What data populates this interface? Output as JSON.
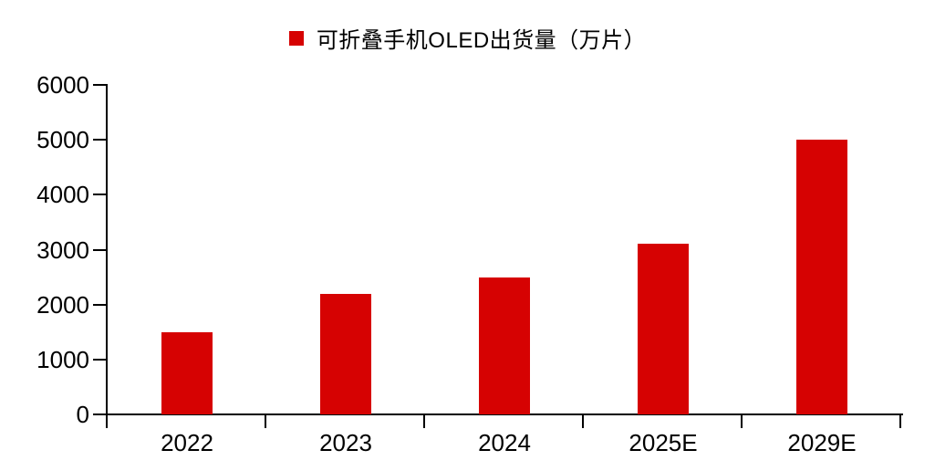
{
  "legend": {
    "label": "可折叠手机OLED出货量（万片）"
  },
  "chart_data": {
    "type": "bar",
    "title": "可折叠手机OLED出货量（万片）",
    "categories": [
      "2022",
      "2023",
      "2024",
      "2025E",
      "2029E"
    ],
    "values": [
      1500,
      2200,
      2500,
      3100,
      5000
    ],
    "xlabel": "",
    "ylabel": "",
    "ylim": [
      0,
      6000
    ],
    "yticks": [
      0,
      1000,
      2000,
      3000,
      4000,
      5000,
      6000
    ],
    "bar_color": "#d60202",
    "axis_color": "#000000",
    "text_color": "#000000",
    "legend_position": "top-center",
    "grid": false
  }
}
